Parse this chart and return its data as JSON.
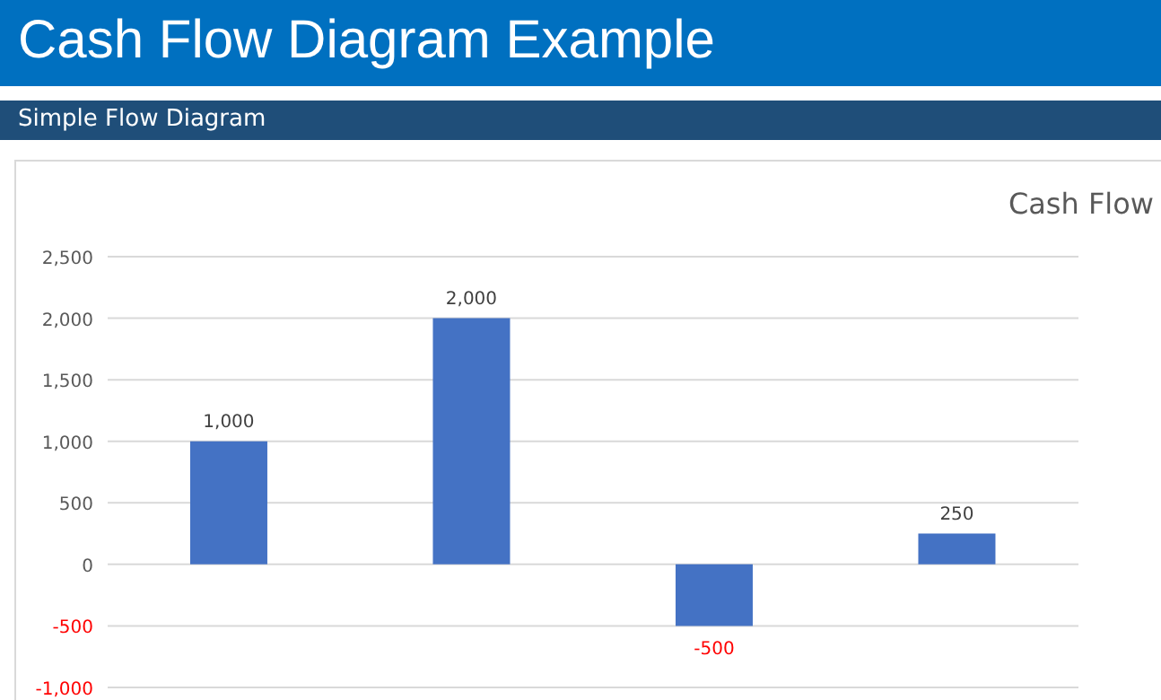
{
  "chart_data": {
    "type": "bar",
    "title": "Cash Flow Diagram Example",
    "subtitle": "Simple Flow Diagram",
    "annotations": [
      "Cash Flow"
    ],
    "categories": [
      null,
      null,
      null,
      null
    ],
    "values": [
      1000,
      2000,
      -500,
      250
    ],
    "color": "#4472c4",
    "ylim": [
      -1000,
      2500
    ],
    "yticks": [
      {
        "value": -1000,
        "label": "-1,000"
      },
      {
        "value": -500,
        "label": "-500"
      },
      {
        "value": 0,
        "label": "0"
      },
      {
        "value": 500,
        "label": "500"
      },
      {
        "value": 1000,
        "label": "1,000"
      },
      {
        "value": 1500,
        "label": "1,500"
      },
      {
        "value": 2000,
        "label": "2,000"
      },
      {
        "value": 2500,
        "label": "2,500"
      }
    ],
    "value_labels": [
      "1,000",
      "2,000",
      "-500",
      "250"
    ],
    "grid": "y"
  }
}
